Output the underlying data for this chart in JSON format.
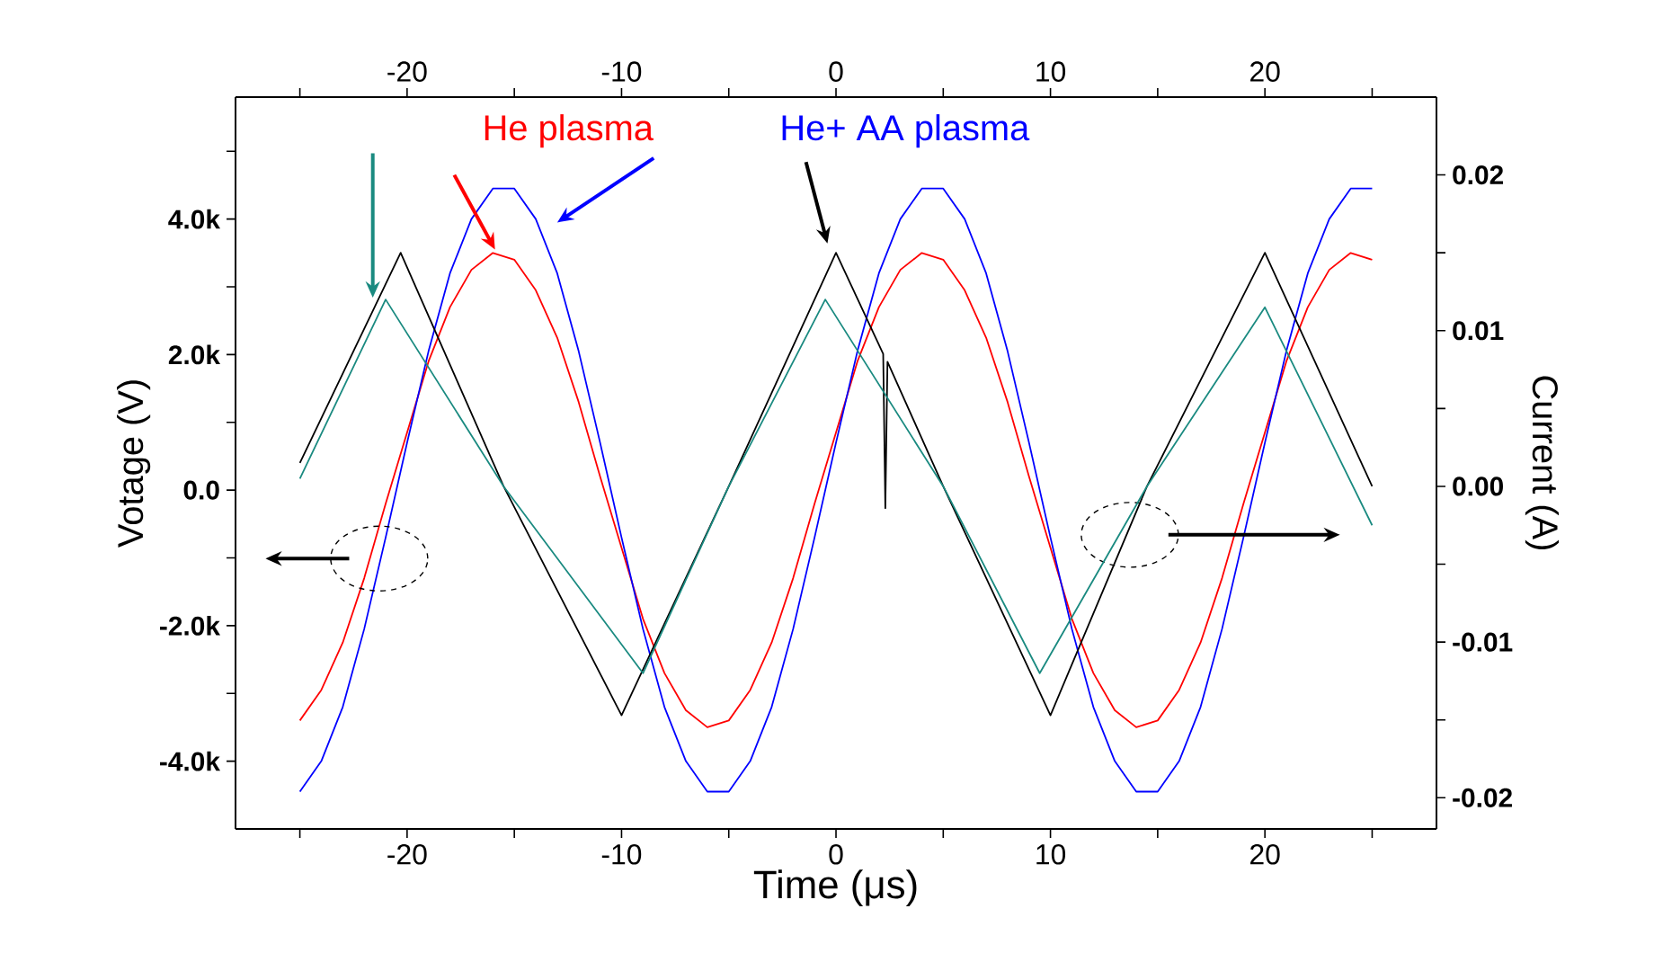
{
  "chart_data": {
    "type": "line",
    "xlabel": "Time (μs)",
    "ylabel": "Votage (V)",
    "y2label": "Current (A)",
    "xlim": [
      -28,
      28
    ],
    "xticks": [
      {
        "value": -25,
        "label": null
      },
      -20,
      {
        "value": -15,
        "label": null
      },
      -10,
      {
        "value": -5,
        "label": null
      },
      0,
      {
        "value": 5,
        "label": null
      },
      10,
      {
        "value": 15,
        "label": null
      },
      20,
      {
        "value": 25,
        "label": null
      }
    ],
    "x2lim": [
      -28,
      28
    ],
    "x2ticks": [
      {
        "value": -25,
        "label": null
      },
      -20,
      {
        "value": -15,
        "label": null
      },
      -10,
      {
        "value": -5,
        "label": null
      },
      0,
      {
        "value": 5,
        "label": null
      },
      10,
      {
        "value": 15,
        "label": null
      },
      20,
      {
        "value": 25,
        "label": null
      }
    ],
    "ylim": [
      -5000,
      5800
    ],
    "yticks": [
      {
        "value": 5000,
        "label": null
      },
      {
        "value": 4000,
        "label": "4.0k"
      },
      {
        "value": 3000,
        "label": null
      },
      {
        "value": 2000,
        "label": "2.0k"
      },
      {
        "value": 1000,
        "label": null
      },
      {
        "value": 0,
        "label": "0.0"
      },
      {
        "value": -1000,
        "label": null
      },
      {
        "value": -2000,
        "label": "-2.0k"
      },
      {
        "value": -3000,
        "label": null
      },
      {
        "value": -4000,
        "label": "-4.0k"
      }
    ],
    "y2lim": [
      -0.022,
      0.025
    ],
    "y2ticks": [
      0.02,
      {
        "value": 0.015,
        "label": null
      },
      0.01,
      {
        "value": 0.005,
        "label": null
      },
      {
        "value": 0,
        "label": "0.00"
      },
      {
        "value": -0.005,
        "label": null
      },
      -0.01,
      {
        "value": -0.015,
        "label": null
      },
      -0.02
    ],
    "x": [
      -25,
      -24,
      -23,
      -22,
      -21,
      -20,
      -19,
      -18,
      -17,
      -16,
      -15,
      -14,
      -13,
      -12,
      -11,
      -10,
      -9,
      -8,
      -7,
      -6,
      -5,
      -4,
      -3,
      -2,
      -1,
      0,
      1,
      2,
      3,
      4,
      5,
      6,
      7,
      8,
      9,
      10,
      11,
      12,
      13,
      14,
      15,
      16,
      17,
      18,
      19,
      20,
      21,
      22,
      23,
      24,
      25
    ],
    "series": [
      {
        "name": "He plasma",
        "color": "#ff0000",
        "values": [
          -3400,
          -2950,
          -2250,
          -1300,
          -200,
          850,
          1900,
          2700,
          3250,
          3500,
          3400,
          2950,
          2250,
          1300,
          200,
          -850,
          -1900,
          -2700,
          -3250,
          -3500,
          -3400,
          -2950,
          -2250,
          -1300,
          -200,
          850,
          1900,
          2700,
          3250,
          3500,
          3400,
          2950,
          2250,
          1300,
          200,
          -850,
          -1900,
          -2700,
          -3250,
          -3500,
          -3400,
          -2950,
          -2250,
          -1300,
          -200,
          850,
          1900,
          2700,
          3250,
          3500,
          3400
        ]
      },
      {
        "name": "He+ AA plasma",
        "color": "#0000ff",
        "values": [
          -4450,
          -4000,
          -3200,
          -2050,
          -700,
          700,
          2050,
          3200,
          4000,
          4450,
          4450,
          4000,
          3200,
          2050,
          700,
          -700,
          -2050,
          -3200,
          -4000,
          -4450,
          -4450,
          -4000,
          -3200,
          -2050,
          -700,
          700,
          2050,
          3200,
          4000,
          4450,
          4450,
          4000,
          3200,
          2050,
          700,
          -700,
          -2050,
          -3200,
          -4000,
          -4450,
          -4450,
          -4000,
          -3200,
          -2050,
          -700,
          700,
          2050,
          3200,
          4000,
          4450,
          4450
        ]
      },
      {
        "color": "#000000",
        "axis": "y2",
        "x": [
          -25,
          -20.3,
          -15.5,
          -10,
          -5,
          0,
          2.2,
          2.3,
          2.4,
          5,
          10,
          14.5,
          20,
          25
        ],
        "values": [
          0.0015,
          0.015,
          0.0,
          -0.0147,
          0.0,
          0.015,
          0.0085,
          -0.0014,
          0.008,
          0.0,
          -0.0147,
          0.0,
          0.015,
          0.0
        ]
      },
      {
        "color": "#1a8a80",
        "axis": "y2",
        "x": [
          -25,
          -21,
          -15.5,
          -9,
          -5,
          -0.5,
          5,
          9.5,
          14.5,
          20,
          25
        ],
        "values": [
          0.0005,
          0.012,
          0.0,
          -0.012,
          0.0,
          0.012,
          0.0,
          -0.012,
          0.0,
          0.0115,
          -0.0025
        ]
      }
    ]
  }
}
